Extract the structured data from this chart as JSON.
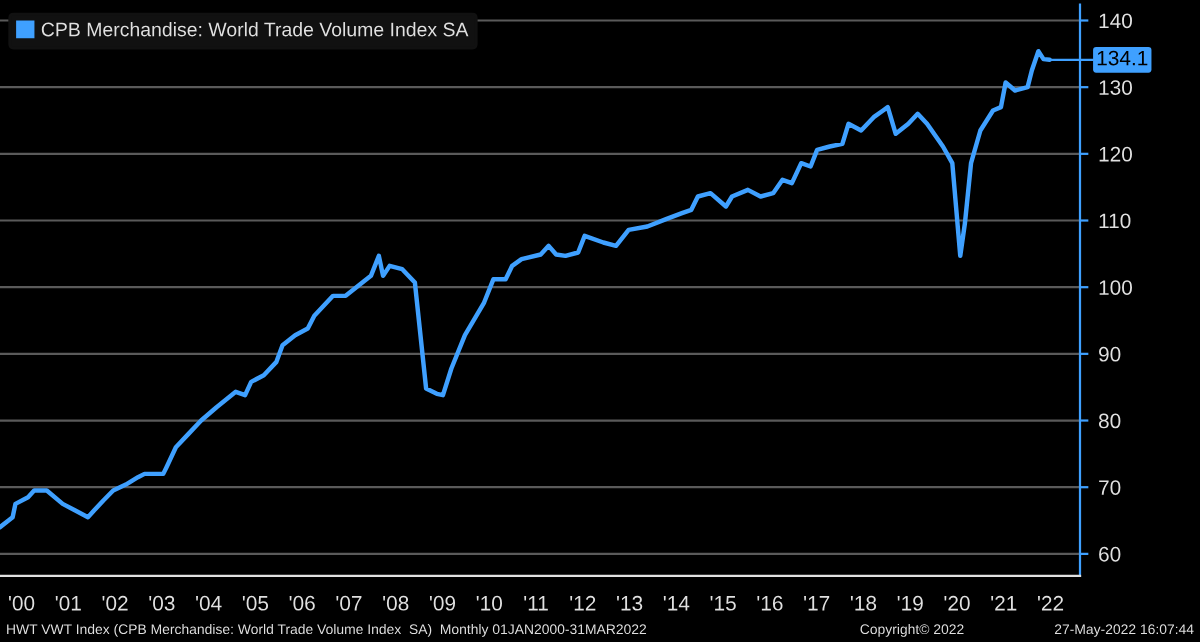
{
  "chart_data": {
    "type": "line",
    "x": [
      1999.54,
      1999.81,
      1999.87,
      2000.14,
      2000.27,
      2000.54,
      2000.88,
      2001.15,
      2001.42,
      2001.55,
      2001.75,
      2001.96,
      2002.23,
      2002.49,
      2002.63,
      2003.03,
      2003.1,
      2003.3,
      2003.57,
      2003.84,
      2004.17,
      2004.58,
      2004.78,
      2004.91,
      2005.18,
      2005.45,
      2005.58,
      2005.85,
      2006.12,
      2006.26,
      2006.66,
      2006.93,
      2007.2,
      2007.47,
      2007.64,
      2007.73,
      2007.87,
      2008.14,
      2008.41,
      2008.65,
      2008.88,
      2009.01,
      2009.19,
      2009.48,
      2009.89,
      2010.09,
      2010.35,
      2010.49,
      2010.69,
      2011.1,
      2011.27,
      2011.43,
      2011.63,
      2011.9,
      2012.04,
      2012.44,
      2012.71,
      2012.98,
      2013.38,
      2013.78,
      2014.12,
      2014.32,
      2014.46,
      2014.73,
      2015.06,
      2015.19,
      2015.53,
      2015.8,
      2016.07,
      2016.27,
      2016.47,
      2016.67,
      2016.87,
      2017.01,
      2017.28,
      2017.55,
      2017.68,
      2017.95,
      2018.22,
      2018.42,
      2018.52,
      2018.69,
      2018.96,
      2019.16,
      2019.36,
      2019.7,
      2019.9,
      2020.07,
      2020.17,
      2020.3,
      2020.5,
      2020.77,
      2020.94,
      2021.04,
      2021.24,
      2021.51,
      2021.6,
      2021.74,
      2021.85,
      2021.98
    ],
    "series": [
      {
        "name": "CPB Merchandise: World Trade Volume Index SA",
        "color": "#3fa0ff",
        "values": [
          64.0,
          65.5,
          67.5,
          68.5,
          69.5,
          69.5,
          67.5,
          66.5,
          65.5,
          66.5,
          68,
          69.5,
          70.4,
          71.5,
          72,
          72,
          73,
          76,
          78,
          80,
          82,
          84.3,
          83.8,
          85.8,
          86.8,
          88.8,
          91.3,
          92.8,
          93.8,
          95.7,
          98.7,
          98.7,
          100.2,
          101.7,
          104.7,
          101.7,
          103.2,
          102.7,
          100.7,
          84.8,
          84,
          83.8,
          87.8,
          92.8,
          97.7,
          101.2,
          101.2,
          103.2,
          104.2,
          104.9,
          106.2,
          104.9,
          104.7,
          105.2,
          107.7,
          106.7,
          106.2,
          108.6,
          109.1,
          110.2,
          111.1,
          111.6,
          113.6,
          114.1,
          112.1,
          113.6,
          114.6,
          113.6,
          114.1,
          116.1,
          115.6,
          118.6,
          118.1,
          120.6,
          121.1,
          121.5,
          124.5,
          123.5,
          125.5,
          126.5,
          127,
          123,
          124.5,
          126,
          124.5,
          121.1,
          118.6,
          104.7,
          109.6,
          118.6,
          123.5,
          126.5,
          127,
          130.7,
          129.5,
          130,
          132.5,
          135.4,
          134.2,
          134.1
        ]
      }
    ],
    "xlim": [
      1999.54,
      2022.63
    ],
    "xticks": [
      {
        "value": 2000,
        "label": "'00"
      },
      {
        "value": 2001,
        "label": "'01"
      },
      {
        "value": 2002,
        "label": "'02"
      },
      {
        "value": 2003,
        "label": "'03"
      },
      {
        "value": 2004,
        "label": "'04"
      },
      {
        "value": 2005,
        "label": "'05"
      },
      {
        "value": 2006,
        "label": "'06"
      },
      {
        "value": 2007,
        "label": "'07"
      },
      {
        "value": 2008,
        "label": "'08"
      },
      {
        "value": 2009,
        "label": "'09"
      },
      {
        "value": 2010,
        "label": "'10"
      },
      {
        "value": 2011,
        "label": "'11"
      },
      {
        "value": 2012,
        "label": "'12"
      },
      {
        "value": 2013,
        "label": "'13"
      },
      {
        "value": 2014,
        "label": "'14"
      },
      {
        "value": 2015,
        "label": "'15"
      },
      {
        "value": 2016,
        "label": "'16"
      },
      {
        "value": 2017,
        "label": "'17"
      },
      {
        "value": 2018,
        "label": "'18"
      },
      {
        "value": 2019,
        "label": "'19"
      },
      {
        "value": 2020,
        "label": "'20"
      },
      {
        "value": 2021,
        "label": "'21"
      },
      {
        "value": 2022,
        "label": "'22"
      }
    ],
    "ylim": [
      56.7,
      142.4
    ],
    "yticks": [
      60,
      70,
      80,
      90,
      100,
      110,
      120,
      130,
      140
    ],
    "grid": "y",
    "legend": "top left",
    "line_style": "solid",
    "marker": "none",
    "annotations": [
      {
        "text": "134.1",
        "x": 2021.98,
        "y": 134.1
      },
      "HWT VWT Index (CPB Merchandise: World Trade Volume Index  SA)  Monthly 01JAN2000-31MAR2022",
      "Copyright© 2022",
      "27-May-2022 16:07:44"
    ]
  }
}
